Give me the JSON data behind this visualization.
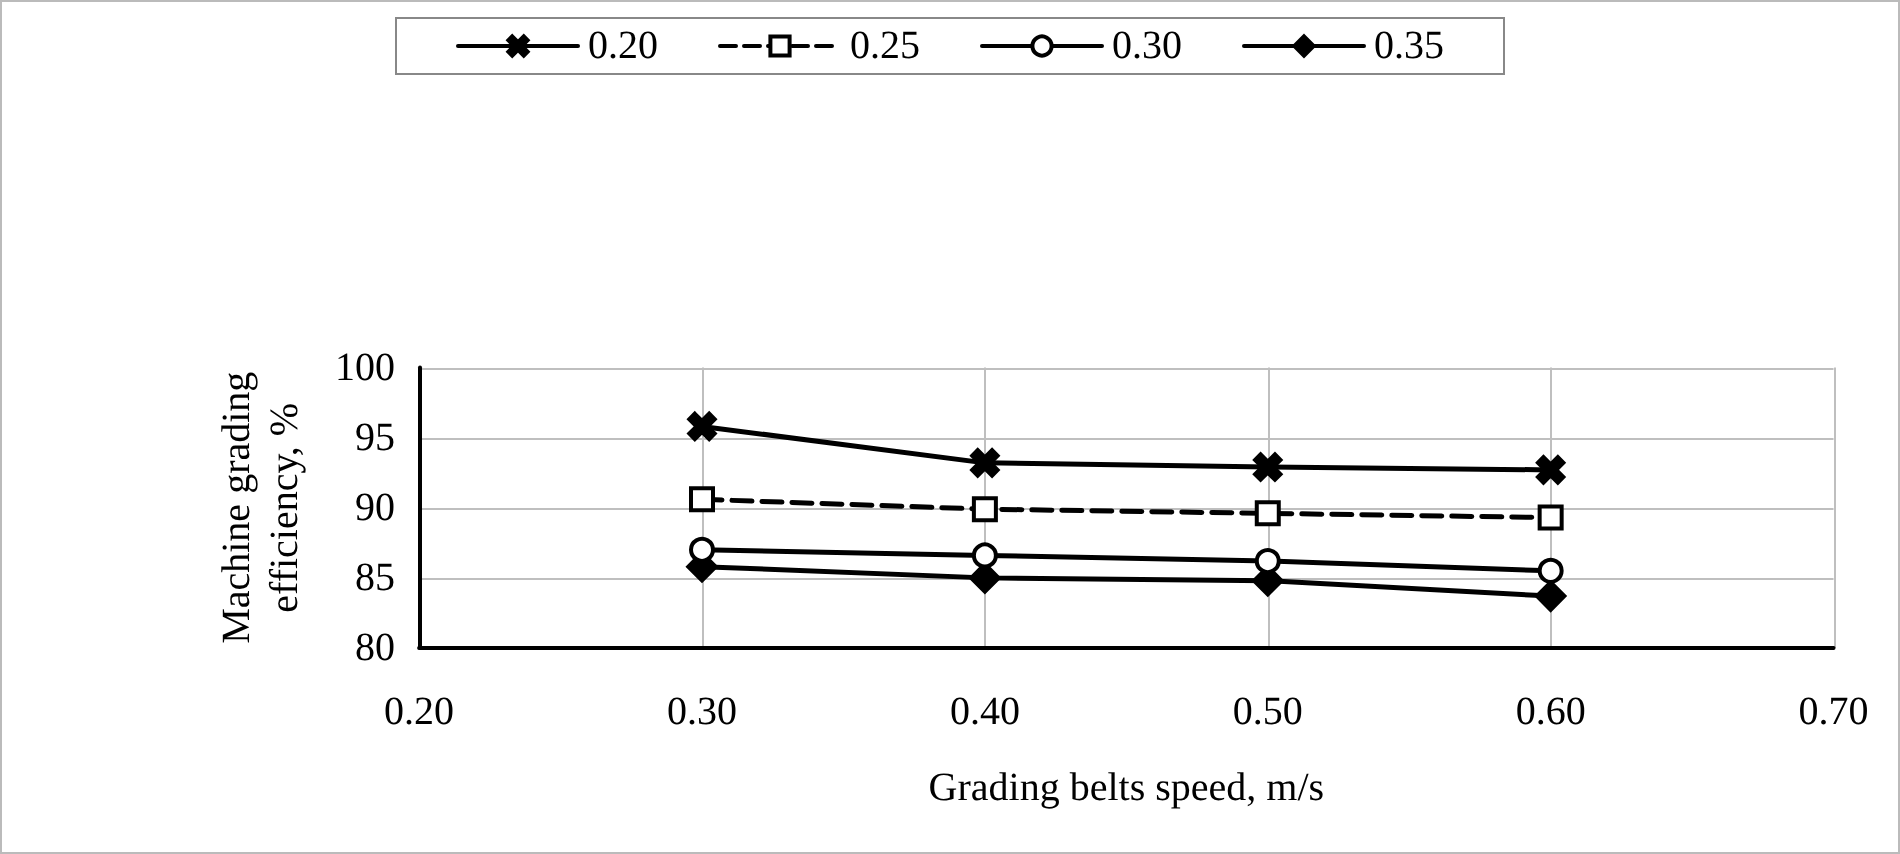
{
  "chart_data": {
    "type": "line",
    "xlabel": "Grading belts speed, m/s",
    "ylabel": "Machine grading efficiency, %",
    "xlim": [
      0.2,
      0.7
    ],
    "xticks": [
      {
        "value": 0.2,
        "label": "0.20"
      },
      {
        "value": 0.3,
        "label": "0.30"
      },
      {
        "value": 0.4,
        "label": "0.40"
      },
      {
        "value": 0.5,
        "label": "0.50"
      },
      {
        "value": 0.6,
        "label": "0.60"
      },
      {
        "value": 0.7,
        "label": "0.70"
      }
    ],
    "ylim": [
      80,
      100
    ],
    "yticks": [
      80,
      85,
      90,
      95,
      100
    ],
    "grid": true,
    "legend": "top",
    "x": [
      0.3,
      0.4,
      0.5,
      0.6
    ],
    "series": [
      {
        "name": "0.20",
        "color": "#000000",
        "marker": "cross",
        "line_style": "solid",
        "values": [
          95.8,
          93.2,
          92.9,
          92.7
        ]
      },
      {
        "name": "0.25",
        "color": "#000000",
        "marker": "square",
        "line_style": "dashed",
        "values": [
          90.6,
          89.9,
          89.6,
          89.3
        ]
      },
      {
        "name": "0.30",
        "color": "#000000",
        "marker": "circle",
        "line_style": "solid",
        "values": [
          87.0,
          86.6,
          86.2,
          85.5
        ]
      },
      {
        "name": "0.35",
        "color": "#000000",
        "marker": "diamond",
        "line_style": "solid",
        "values": [
          85.8,
          85.0,
          84.8,
          83.7
        ]
      }
    ]
  }
}
